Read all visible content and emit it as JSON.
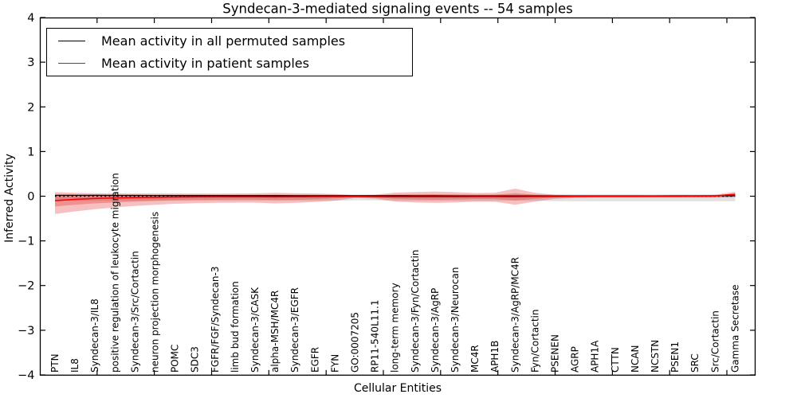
{
  "window": {
    "background": "#ffffff"
  },
  "chart_data": {
    "type": "area",
    "title": "Syndecan-3-mediated signaling events -- 54 samples",
    "xlabel": "Cellular Entities",
    "ylabel": "Inferred Activity",
    "ylim": [
      -4,
      4
    ],
    "grid": false,
    "legend_position": "upper left",
    "yticks": [
      {
        "value": 4,
        "label": "4"
      },
      {
        "value": 3,
        "label": "3"
      },
      {
        "value": 2,
        "label": "2"
      },
      {
        "value": 1,
        "label": "1"
      },
      {
        "value": 0,
        "label": "0"
      },
      {
        "value": -1,
        "label": "−1"
      },
      {
        "value": -2,
        "label": "−2"
      },
      {
        "value": -3,
        "label": "−3"
      },
      {
        "value": -4,
        "label": "−4"
      }
    ],
    "legend": [
      {
        "label": "Mean activity in all permuted samples",
        "color": "#000000"
      },
      {
        "label": "Mean activity in patient samples",
        "color": "#ff0000"
      }
    ],
    "categories": [
      "PTN",
      "IL8",
      "Syndecan-3/IL8",
      "positive regulation of leukocyte migration",
      "Syndecan-3/Src/Cortactin",
      "neuron projection morphogenesis",
      "POMC",
      "SDC3",
      "FGFR/FGF/Syndecan-3",
      "limb bud formation",
      "Syndecan-3/CASK",
      "alpha-MSH/MC4R",
      "Syndecan-3/EGFR",
      "EGFR",
      "FYN",
      "GO:0007205",
      "RP11-540L11.1",
      "long-term memory",
      "Syndecan-3/Fyn/Cortactin",
      "Syndecan-3/AgRP",
      "Syndecan-3/Neurocan",
      "MC4R",
      "APH1B",
      "Syndecan-3/AgRP/MC4R",
      "Fyn/Cortactin",
      "PSENEN",
      "AGRP",
      "APH1A",
      "CTTN",
      "NCAN",
      "NCSTN",
      "PSEN1",
      "SRC",
      "Src/Cortactin",
      "Gamma Secretase"
    ],
    "series": [
      {
        "name": "Mean activity in all permuted samples",
        "color": "#000000",
        "style": "solid",
        "values": [
          0.02,
          0.02,
          0.02,
          0.018,
          0.018,
          0.016,
          0.015,
          0.015,
          0.014,
          0.013,
          0.012,
          0.012,
          0.011,
          0.01,
          0.01,
          0.01,
          0.01,
          0.01,
          0.009,
          0.009,
          0.008,
          0.008,
          0.008,
          0.008,
          0.008,
          0.008,
          0.008,
          0.008,
          0.008,
          0.008,
          0.008,
          0.009,
          0.009,
          0.01,
          0.01
        ]
      },
      {
        "name": "Mean activity in patient samples",
        "color": "#ff0000",
        "style": "solid",
        "values": [
          -0.1,
          -0.07,
          -0.05,
          -0.04,
          -0.03,
          -0.025,
          -0.02,
          -0.015,
          -0.012,
          -0.012,
          -0.013,
          -0.015,
          -0.013,
          -0.011,
          -0.009,
          -0.008,
          -0.01,
          -0.012,
          -0.013,
          -0.013,
          -0.012,
          -0.011,
          -0.011,
          -0.012,
          -0.009,
          -0.007,
          -0.006,
          -0.005,
          -0.005,
          -0.005,
          -0.004,
          -0.003,
          0.0,
          0.005,
          0.045
        ]
      }
    ],
    "zero_line": {
      "y": 0,
      "color": "#000000",
      "style": "dotted"
    },
    "bands": [
      {
        "name": "permuted-range",
        "color": "#aaaaaa",
        "opacity": 0.35,
        "lo": [
          -0.1,
          -0.1,
          -0.1,
          -0.1,
          -0.1,
          -0.1,
          -0.1,
          -0.1,
          -0.1,
          -0.1,
          -0.1,
          -0.1,
          -0.1,
          -0.1,
          -0.1,
          -0.09,
          -0.09,
          -0.1,
          -0.1,
          -0.1,
          -0.1,
          -0.1,
          -0.1,
          -0.1,
          -0.1,
          -0.11,
          -0.11,
          -0.11,
          -0.11,
          -0.11,
          -0.11,
          -0.11,
          -0.11,
          -0.11,
          -0.11
        ],
        "hi": [
          0.04,
          0.04,
          0.04,
          0.04,
          0.04,
          0.04,
          0.04,
          0.04,
          0.04,
          0.04,
          0.04,
          0.04,
          0.04,
          0.04,
          0.04,
          0.04,
          0.04,
          0.04,
          0.04,
          0.04,
          0.04,
          0.04,
          0.04,
          0.04,
          0.04,
          0.04,
          0.04,
          0.04,
          0.04,
          0.04,
          0.04,
          0.04,
          0.04,
          0.04,
          0.04
        ]
      },
      {
        "name": "patient-outer",
        "color": "#e03030",
        "opacity": 0.3,
        "lo": [
          -0.4,
          -0.34,
          -0.29,
          -0.25,
          -0.22,
          -0.19,
          -0.17,
          -0.155,
          -0.15,
          -0.145,
          -0.145,
          -0.16,
          -0.15,
          -0.13,
          -0.1,
          -0.04,
          -0.055,
          -0.12,
          -0.14,
          -0.15,
          -0.14,
          -0.125,
          -0.125,
          -0.19,
          -0.12,
          -0.06,
          -0.04,
          -0.032,
          -0.03,
          -0.03,
          -0.03,
          -0.03,
          -0.03,
          -0.032,
          -0.02
        ],
        "hi": [
          0.09,
          0.075,
          0.065,
          0.06,
          0.06,
          0.06,
          0.06,
          0.06,
          0.058,
          0.06,
          0.065,
          0.075,
          0.068,
          0.06,
          0.05,
          0.02,
          0.03,
          0.08,
          0.095,
          0.105,
          0.09,
          0.072,
          0.078,
          0.17,
          0.075,
          0.032,
          0.022,
          0.02,
          0.02,
          0.02,
          0.02,
          0.02,
          0.022,
          0.03,
          0.1
        ]
      },
      {
        "name": "patient-inner",
        "color": "#e03030",
        "opacity": 0.32,
        "lo": [
          -0.23,
          -0.19,
          -0.16,
          -0.14,
          -0.12,
          -0.105,
          -0.09,
          -0.082,
          -0.08,
          -0.075,
          -0.075,
          -0.085,
          -0.08,
          -0.07,
          -0.05,
          -0.022,
          -0.03,
          -0.062,
          -0.072,
          -0.078,
          -0.072,
          -0.062,
          -0.062,
          -0.095,
          -0.06,
          -0.03,
          -0.022,
          -0.018,
          -0.017,
          -0.017,
          -0.017,
          -0.016,
          -0.016,
          -0.017,
          -0.012
        ],
        "hi": [
          0.012,
          0.012,
          0.012,
          0.012,
          0.013,
          0.015,
          0.018,
          0.02,
          0.02,
          0.021,
          0.023,
          0.028,
          0.024,
          0.021,
          0.018,
          0.008,
          0.012,
          0.03,
          0.038,
          0.042,
          0.036,
          0.028,
          0.03,
          0.07,
          0.03,
          0.012,
          0.009,
          0.008,
          0.008,
          0.008,
          0.008,
          0.008,
          0.009,
          0.014,
          0.058
        ]
      }
    ]
  }
}
